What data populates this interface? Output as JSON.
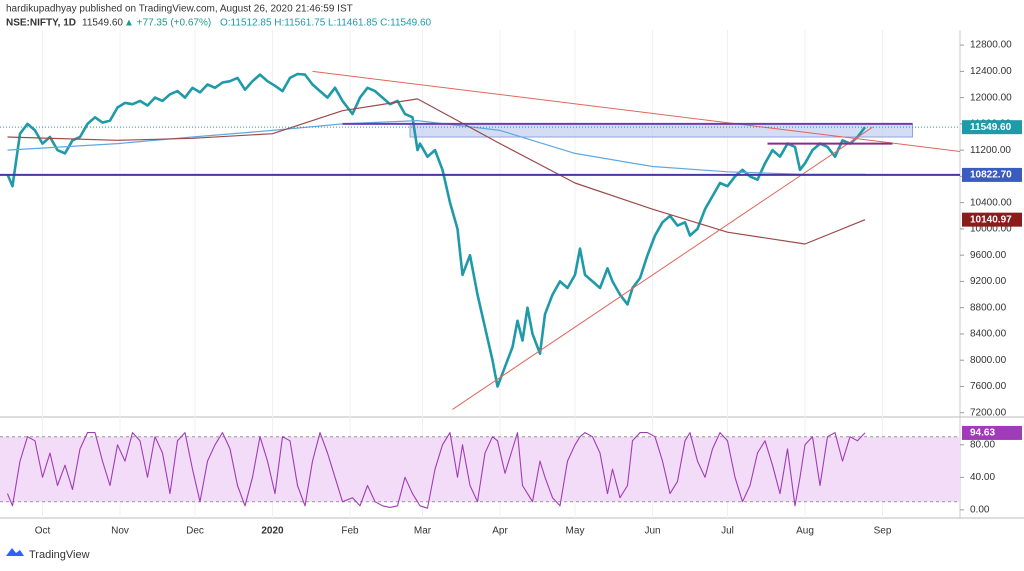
{
  "header": {
    "publisher": "hardikupadhyay published on TradingView.com, August 26, 2020 21:46:59 IST",
    "symbol": "NSE:NIFTY, 1D",
    "last": "11549.60",
    "change": "▲ +77.35 (+0.67%)",
    "ohlc": "O:11512.85 H:11561.75 L:11461.85 C:11549.60"
  },
  "footer": {
    "brand": "TradingView"
  },
  "chart_data": [
    {
      "type": "line",
      "x": [
        -14,
        -12,
        -9,
        -6,
        -3,
        0,
        3,
        6,
        9,
        12,
        15,
        18,
        21,
        24,
        27,
        30,
        33,
        36,
        39,
        42,
        45,
        48,
        51,
        54,
        57,
        60,
        63,
        66,
        69,
        72,
        75,
        78,
        81,
        84,
        87,
        90,
        93,
        96,
        99,
        102,
        105,
        108,
        111,
        114,
        117,
        120,
        124,
        127,
        130,
        133,
        136,
        139,
        142,
        145,
        148,
        150,
        151,
        154,
        157,
        160,
        163,
        166,
        168,
        171,
        174,
        177,
        180,
        182,
        185,
        188,
        190,
        192,
        194,
        196,
        199,
        201,
        204,
        207,
        210,
        213,
        215,
        217,
        220,
        223,
        226,
        228,
        231,
        234,
        236,
        239,
        242,
        245,
        248,
        251,
        254,
        257,
        259,
        262,
        265,
        268,
        271,
        274,
        277,
        280,
        283,
        286,
        289,
        292,
        295,
        298,
        301,
        303,
        305,
        308,
        311,
        314,
        317,
        320,
        323,
        326,
        329
      ],
      "xlim": [
        -17,
        367
      ],
      "xticks": [
        {
          "value": 0,
          "label": "Oct"
        },
        {
          "value": 31,
          "label": "Nov"
        },
        {
          "value": 61,
          "label": "Dec"
        },
        {
          "value": 92,
          "label": "2020"
        },
        {
          "value": 123,
          "label": "Feb"
        },
        {
          "value": 152,
          "label": "Mar"
        },
        {
          "value": 183,
          "label": "Apr"
        },
        {
          "value": 213,
          "label": "May"
        },
        {
          "value": 244,
          "label": "Jun"
        },
        {
          "value": 274,
          "label": "Jul"
        },
        {
          "value": 305,
          "label": "Aug"
        },
        {
          "value": 336,
          "label": "Sep"
        }
      ],
      "ylim": [
        7150,
        13030
      ],
      "yticks": [
        {
          "value": 7200,
          "label": "7200.00"
        },
        {
          "value": 7600,
          "label": "7600.00"
        },
        {
          "value": 8000,
          "label": "8000.00"
        },
        {
          "value": 8400,
          "label": "8400.00"
        },
        {
          "value": 8800,
          "label": "8800.00"
        },
        {
          "value": 9200,
          "label": "9200.00"
        },
        {
          "value": 9600,
          "label": "9600.00"
        },
        {
          "value": 10000,
          "label": "10000.00"
        },
        {
          "value": 10400,
          "label": "10400.00"
        },
        {
          "value": 10800,
          "label": "10800.00"
        },
        {
          "value": 11200,
          "label": "11200.00"
        },
        {
          "value": 11600,
          "label": "11600.00"
        },
        {
          "value": 12000,
          "label": "12000.00"
        },
        {
          "value": 12400,
          "label": "12400.00"
        },
        {
          "value": 12800,
          "label": "12800.00"
        }
      ],
      "series": [
        {
          "color": "#1e9aa8",
          "width": 2.6,
          "values": [
            10830,
            10650,
            11450,
            11600,
            11500,
            11300,
            11400,
            11200,
            11150,
            11350,
            11400,
            11600,
            11700,
            11620,
            11650,
            11850,
            11920,
            11900,
            11950,
            11880,
            12000,
            11950,
            12050,
            12100,
            12000,
            12150,
            12080,
            12200,
            12150,
            12230,
            12250,
            12300,
            12120,
            12250,
            12350,
            12250,
            12180,
            12100,
            12300,
            12360,
            12350,
            12200,
            12100,
            12000,
            12150,
            11950,
            11750,
            12000,
            12150,
            12100,
            12000,
            11900,
            11950,
            11750,
            11700,
            11200,
            11300,
            11100,
            11200,
            10900,
            10400,
            10000,
            9300,
            9600,
            9000,
            8500,
            8000,
            7600,
            7900,
            8200,
            8600,
            8300,
            8800,
            8400,
            8100,
            8700,
            9000,
            9200,
            9100,
            9300,
            9700,
            9300,
            9200,
            9100,
            9400,
            9200,
            9000,
            8850,
            9100,
            9250,
            9600,
            9900,
            10100,
            10200,
            10050,
            10100,
            9900,
            10000,
            10300,
            10500,
            10700,
            10650,
            10800,
            10900,
            10800,
            10750,
            11000,
            11200,
            11100,
            11300,
            11250,
            10900,
            11000,
            11200,
            11300,
            11250,
            11100,
            11350,
            11300,
            11400,
            11549.6
          ]
        },
        {
          "color": "#5fa8e0",
          "width": 1.2,
          "x": [
            -14,
            30,
            60,
            92,
            120,
            150,
            183,
            213,
            244,
            274,
            305,
            329
          ],
          "values": [
            11200,
            11300,
            11400,
            11500,
            11600,
            11650,
            11500,
            11150,
            10950,
            10870,
            10830,
            10830
          ]
        },
        {
          "color": "#9c4a4a",
          "width": 1.2,
          "x": [
            -14,
            30,
            60,
            92,
            120,
            150,
            183,
            213,
            244,
            274,
            305,
            329
          ],
          "values": [
            11400,
            11350,
            11380,
            11450,
            11800,
            11980,
            11300,
            10700,
            10300,
            9950,
            9770,
            10140.97
          ]
        }
      ],
      "boxes": [
        {
          "x": [
            147,
            348
          ],
          "y": [
            11400,
            11600
          ],
          "color": "#c3cff0"
        }
      ],
      "trendlines": [
        {
          "from": [
            108,
            12400
          ],
          "to": [
            367,
            11180
          ],
          "color": "#e0665a",
          "width": 1
        },
        {
          "from": [
            164,
            7250
          ],
          "to": [
            332,
            11550
          ],
          "color": "#e0665a",
          "width": 1
        },
        {
          "from": [
            120,
            11600
          ],
          "to": [
            348,
            11600
          ],
          "color": "#6a3fb0",
          "width": 2
        },
        {
          "from": [
            290,
            11300
          ],
          "to": [
            340,
            11300
          ],
          "color": "#8a2a8a",
          "width": 2
        },
        {
          "from": [
            -17,
            10822.7
          ],
          "to": [
            367,
            10822.7
          ],
          "color": "#4a35a0",
          "width": 2
        }
      ],
      "price_labels": [
        {
          "value": 11549.6,
          "label": "11549.60",
          "color": "#1e9aa8"
        },
        {
          "value": 10822.7,
          "label": "10822.70",
          "color": "#3a5bbf"
        },
        {
          "value": 10140.97,
          "label": "10140.97",
          "color": "#8b1c1c"
        }
      ]
    },
    {
      "type": "line",
      "ylim": [
        -10,
        113
      ],
      "yticks": [
        {
          "value": 0,
          "label": "0.00"
        },
        {
          "value": 40,
          "label": "40.00"
        },
        {
          "value": 80,
          "label": "80.00"
        }
      ],
      "band": [
        10,
        90
      ],
      "band_color": "#f3dcf7",
      "series": [
        {
          "color": "#a03cb8",
          "width": 1.1,
          "values": [
            20,
            5,
            60,
            90,
            85,
            40,
            70,
            30,
            55,
            25,
            75,
            95,
            95,
            60,
            30,
            80,
            60,
            95,
            85,
            40,
            90,
            70,
            20,
            85,
            95,
            50,
            10,
            60,
            80,
            95,
            75,
            30,
            5,
            40,
            90,
            60,
            20,
            90,
            85,
            30,
            5,
            60,
            95,
            70,
            40,
            10,
            15,
            5,
            30,
            10,
            5,
            3,
            5,
            40,
            20,
            10,
            5,
            2,
            50,
            80,
            95,
            40,
            80,
            30,
            10,
            70,
            90,
            85,
            45,
            75,
            95,
            30,
            20,
            10,
            60,
            40,
            15,
            5,
            60,
            80,
            90,
            95,
            90,
            70,
            20,
            50,
            15,
            30,
            85,
            95,
            95,
            90,
            60,
            20,
            35,
            85,
            95,
            60,
            40,
            75,
            95,
            85,
            40,
            10,
            30,
            70,
            85,
            55,
            20,
            75,
            5,
            40,
            80,
            90,
            30,
            90,
            95,
            60,
            90,
            85,
            94.63
          ]
        }
      ],
      "price_labels": [
        {
          "value": 94.63,
          "label": "94.63",
          "color": "#a03cb8"
        }
      ]
    }
  ]
}
